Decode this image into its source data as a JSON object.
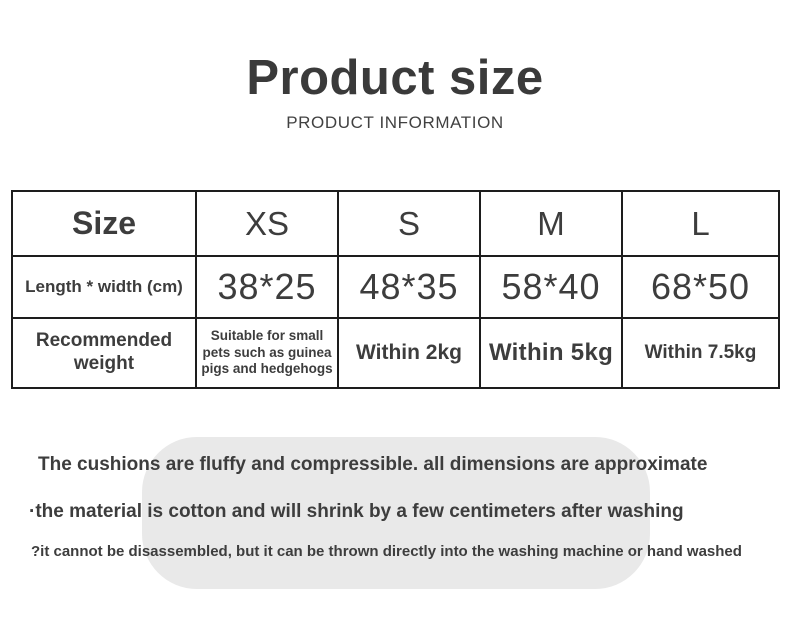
{
  "header": {
    "title": "Product size",
    "subtitle": "PRODUCT INFORMATION"
  },
  "size_table": {
    "columns": [
      "Size",
      "XS",
      "S",
      "M",
      "L"
    ],
    "dimensions_row": {
      "label": "Length * width (cm)",
      "values": [
        "38*25",
        "48*35",
        "58*40",
        "68*50"
      ]
    },
    "weight_row": {
      "label": "Recommended weight",
      "values": [
        "Suitable for small pets such as guinea pigs and hedgehogs",
        "Within 2kg",
        "Within 5kg",
        "Within 7.5kg"
      ]
    }
  },
  "notes": {
    "lines": [
      "The cushions are fluffy and compressible. all dimensions are approximate",
      "·the material is cotton and will shrink by a few centimeters after washing",
      "?it cannot be disassembled, but it can be thrown directly into the washing machine or hand washed"
    ]
  },
  "colors": {
    "text": "#3d3d3d",
    "table_border": "#1d1d1d",
    "note_bubble": "#e9e9e9",
    "background": "#ffffff"
  }
}
